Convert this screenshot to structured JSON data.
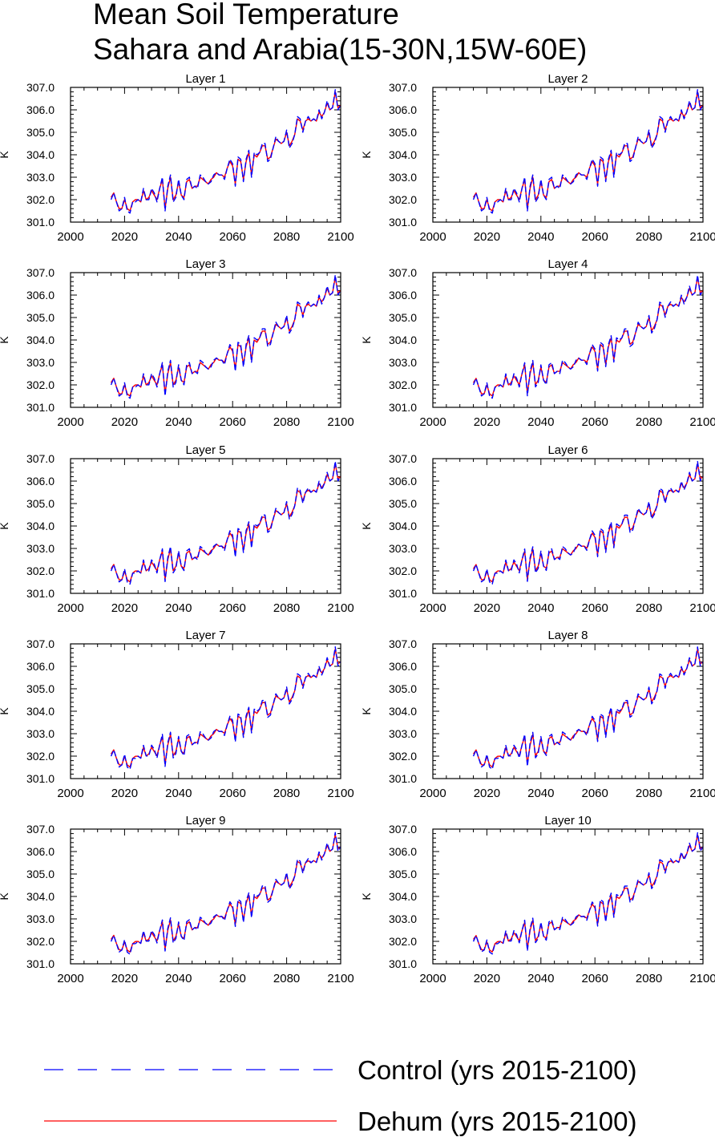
{
  "title": {
    "line1": "Mean Soil Temperature",
    "line2": "Sahara and Arabia(15-30N,15W-60E)"
  },
  "legend": [
    {
      "name": "Control (yrs 2015-2100)",
      "color": "#0000ff",
      "dashed": true
    },
    {
      "name": "Dehum (yrs 2015-2100)",
      "color": "#ff0000",
      "dashed": false
    }
  ],
  "chart_data": {
    "type": "line",
    "ylabel": "K",
    "xlim": [
      2000,
      2100
    ],
    "ylim": [
      301.0,
      307.0
    ],
    "x_ticks": [
      2000,
      2020,
      2040,
      2060,
      2080,
      2100
    ],
    "y_ticks": [
      "301.0",
      "302.0",
      "303.0",
      "304.0",
      "305.0",
      "306.0",
      "307.0"
    ],
    "panel_titles": [
      "Layer 1",
      "Layer 2",
      "Layer 3",
      "Layer 4",
      "Layer 5",
      "Layer 6",
      "Layer 7",
      "Layer 8",
      "Layer 9",
      "Layer 10"
    ],
    "x": [
      2015,
      2016,
      2017,
      2018,
      2019,
      2020,
      2021,
      2022,
      2023,
      2024,
      2025,
      2026,
      2027,
      2028,
      2029,
      2030,
      2031,
      2032,
      2033,
      2034,
      2035,
      2036,
      2037,
      2038,
      2039,
      2040,
      2041,
      2042,
      2043,
      2044,
      2045,
      2046,
      2047,
      2048,
      2049,
      2050,
      2051,
      2052,
      2053,
      2054,
      2055,
      2056,
      2057,
      2058,
      2059,
      2060,
      2061,
      2062,
      2063,
      2064,
      2065,
      2066,
      2067,
      2068,
      2069,
      2070,
      2071,
      2072,
      2073,
      2074,
      2075,
      2076,
      2077,
      2078,
      2079,
      2080,
      2081,
      2082,
      2083,
      2084,
      2085,
      2086,
      2087,
      2088,
      2089,
      2090,
      2091,
      2092,
      2093,
      2094,
      2095,
      2096,
      2097,
      2098,
      2099,
      2100
    ],
    "series": [
      {
        "name": "Control (yrs 2015-2100)",
        "values": [
          302.0,
          302.3,
          301.9,
          301.5,
          301.6,
          302.1,
          301.5,
          301.4,
          301.9,
          301.9,
          302.0,
          301.9,
          302.5,
          302.0,
          302.0,
          302.5,
          302.3,
          301.9,
          302.5,
          303.0,
          301.5,
          302.6,
          303.1,
          301.9,
          302.1,
          302.9,
          302.2,
          302.0,
          302.9,
          303.0,
          302.5,
          302.6,
          302.5,
          303.1,
          303.0,
          302.8,
          302.7,
          302.8,
          303.1,
          303.2,
          303.1,
          303.1,
          302.9,
          303.4,
          303.8,
          303.6,
          302.6,
          303.9,
          303.8,
          302.8,
          303.8,
          304.2,
          303.0,
          304.1,
          304.0,
          304.1,
          304.5,
          304.5,
          303.7,
          303.8,
          304.3,
          304.8,
          304.6,
          304.5,
          304.6,
          305.1,
          304.3,
          304.5,
          304.9,
          305.7,
          305.6,
          305.0,
          305.5,
          305.7,
          305.5,
          305.6,
          305.5,
          306.0,
          305.6,
          305.9,
          306.4,
          306.0,
          306.1,
          306.9,
          306.0,
          306.2
        ]
      },
      {
        "name": "Dehum (yrs 2015-2100)",
        "values": [
          302.1,
          302.3,
          301.9,
          301.6,
          301.6,
          302.0,
          301.6,
          301.5,
          301.9,
          302.0,
          302.0,
          301.9,
          302.4,
          302.0,
          302.1,
          302.4,
          302.2,
          302.0,
          302.5,
          302.9,
          301.6,
          302.5,
          303.0,
          302.0,
          302.2,
          302.8,
          302.2,
          302.1,
          302.8,
          302.9,
          302.5,
          302.6,
          302.6,
          303.0,
          302.9,
          302.8,
          302.7,
          302.9,
          303.0,
          303.2,
          303.1,
          303.1,
          303.0,
          303.4,
          303.7,
          303.5,
          302.7,
          303.8,
          303.7,
          302.9,
          303.7,
          304.1,
          303.1,
          304.0,
          303.9,
          304.1,
          304.4,
          304.4,
          303.8,
          303.9,
          304.3,
          304.7,
          304.6,
          304.5,
          304.6,
          305.0,
          304.4,
          304.6,
          304.9,
          305.6,
          305.5,
          305.1,
          305.5,
          305.6,
          305.5,
          305.6,
          305.5,
          305.9,
          305.7,
          305.9,
          306.3,
          306.0,
          306.1,
          306.8,
          306.1,
          306.2
        ]
      }
    ]
  }
}
